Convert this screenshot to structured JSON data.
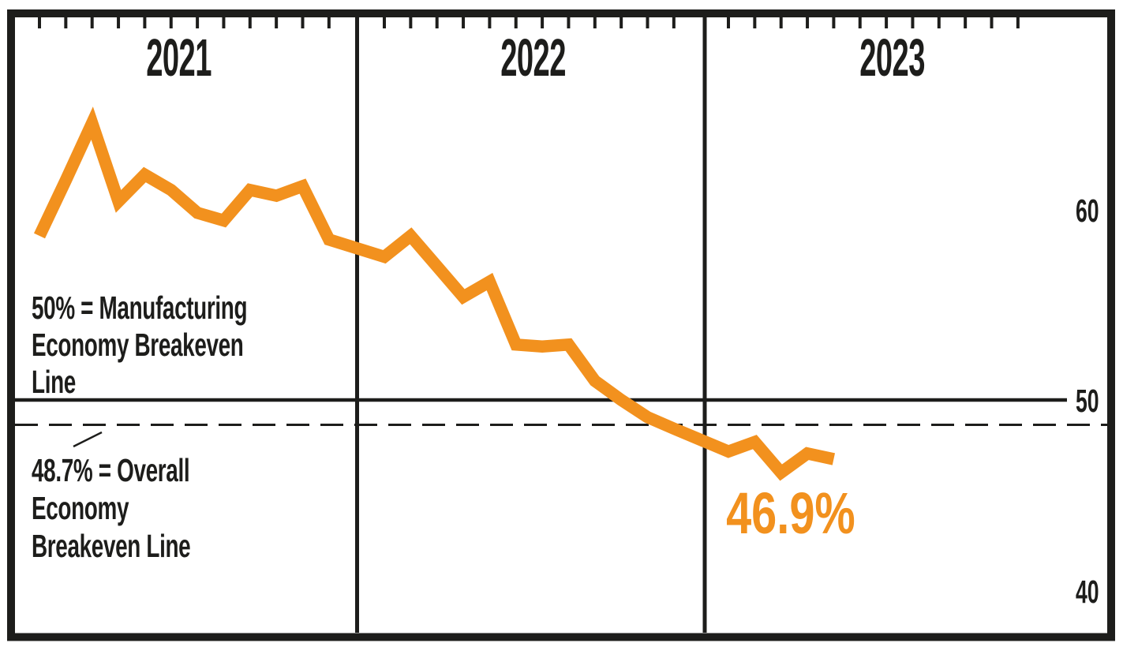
{
  "chart_data": {
    "type": "line",
    "x_unit": "month",
    "years": [
      {
        "label": "2021",
        "values": [
          58.6,
          61.5,
          64.5,
          60.4,
          61.8,
          61.0,
          59.8,
          59.4,
          61.0,
          60.7,
          61.2,
          58.4
        ]
      },
      {
        "label": "2022",
        "values": [
          57.5,
          58.6,
          57.0,
          55.4,
          56.2,
          52.9,
          52.8,
          52.9,
          51.0,
          50.0,
          49.1,
          48.5
        ]
      },
      {
        "label": "2023",
        "values": [
          47.3,
          47.8,
          46.2,
          47.2,
          46.9
        ]
      }
    ],
    "y_axis_labels": [
      "60",
      "50",
      "40"
    ],
    "y_axis_values": [
      60,
      50,
      40
    ],
    "ylim": [
      37.8,
      70.0
    ],
    "grid": "off",
    "legend": "none",
    "line_color": "#F2911E",
    "reference_lines": [
      {
        "value": 50,
        "style": "solid",
        "label": "50% = Manufacturing Economy Breakeven Line"
      },
      {
        "value": 48.7,
        "style": "dashed",
        "label": "48.7% = Overall Economy Breakeven Line"
      }
    ],
    "end_value_label": "46.9%"
  },
  "annotations": {
    "manufacturing_breakeven": {
      "lines": [
        "50% = Manufacturing",
        "Economy Breakeven",
        "Line"
      ]
    },
    "overall_breakeven": {
      "lines": [
        "48.7% = Overall",
        "Economy",
        "Breakeven Line"
      ]
    },
    "current_value": "46.9%"
  },
  "colors": {
    "line_orange": "#F2911E",
    "ink_black": "#1D1D1B",
    "background": "#FFFFFF"
  }
}
